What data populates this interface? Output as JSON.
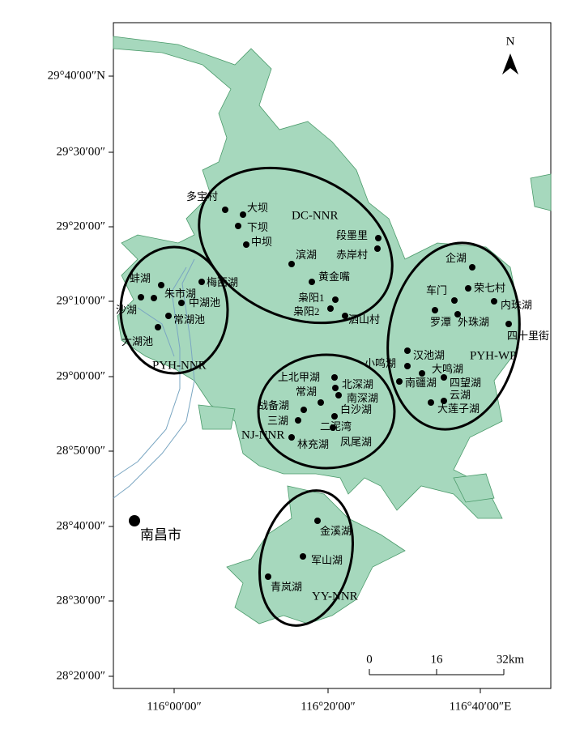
{
  "map": {
    "lat_labels": [
      "29°40′00″N",
      "29°30′00″",
      "29°20′00″",
      "29°10′00″",
      "29°00′00″",
      "28°50′00″",
      "28°40′00″",
      "28°30′00″",
      "28°20′00″"
    ],
    "lon_labels": [
      "116°00′00″",
      "116°20′00″",
      "116°40′00″E"
    ],
    "north": "N",
    "scale": [
      "0",
      "16",
      "32km"
    ],
    "city": "南昌市",
    "regions": [
      "DC-NNR",
      "PYH-NNR",
      "PYH-WP",
      "NJ-NNR",
      "YY-NNR"
    ],
    "sites": [
      "多宝村",
      "大坝",
      "下坝",
      "中坝",
      "滨湖",
      "黄金嘴",
      "段墨里",
      "赤岸村",
      "枭阳1",
      "枭阳2",
      "泗山村",
      "企湖",
      "荣七村",
      "车门",
      "内珠湖",
      "罗潭",
      "外珠湖",
      "四十里街",
      "小鸣湖",
      "汉池湖",
      "大鸣湖",
      "南疆湖",
      "四望湖",
      "云湖",
      "大莲子湖",
      "上北甲湖",
      "北深湖",
      "常湖",
      "南深湖",
      "战备湖",
      "白沙湖",
      "三湖",
      "二泥湾",
      "林充湖",
      "凤尾湖",
      "蚌湖",
      "沙湖",
      "朱市湖",
      "梅西湖",
      "中湖池",
      "常湖池",
      "大湖池",
      "金溪湖",
      "军山湖",
      "青岚湖"
    ]
  }
}
